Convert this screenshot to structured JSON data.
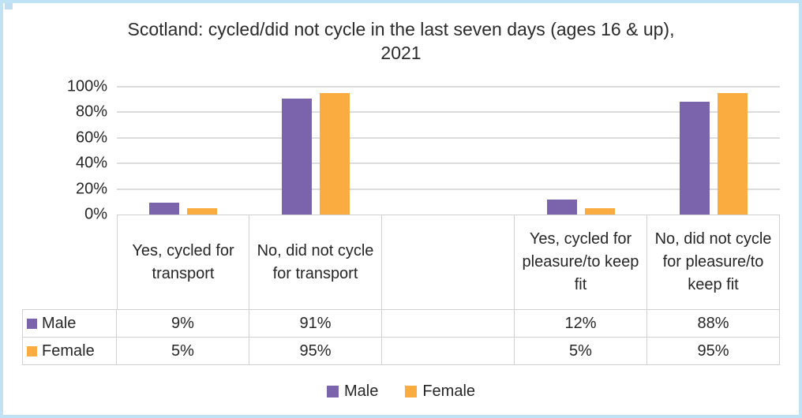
{
  "frame": {
    "border_color": "#bfe3f5"
  },
  "chart_data": {
    "type": "bar",
    "title": "Scotland: cycled/did not cycle in the last seven days (ages 16 & up), 2021",
    "categories": [
      "Yes, cycled for transport",
      "No, did not cycle for transport",
      "",
      "Yes, cycled for pleasure/to keep fit",
      "No, did not cycle for pleasure/to keep fit"
    ],
    "series": [
      {
        "name": "Male",
        "color": "#7c64ac",
        "values": [
          9,
          91,
          null,
          12,
          88
        ]
      },
      {
        "name": "Female",
        "color": "#faac41",
        "values": [
          5,
          95,
          null,
          5,
          95
        ]
      }
    ],
    "ylabel": "",
    "xlabel": "",
    "ylim": [
      0,
      100
    ],
    "ytick_labels": [
      "0%",
      "20%",
      "40%",
      "60%",
      "80%",
      "100%"
    ],
    "grid": true,
    "gridline_color": "#dcdcdc",
    "legend_position": "bottom",
    "data_table_shown": true
  },
  "data_table": {
    "row_headers": [
      "Male",
      "Female"
    ],
    "rows": [
      [
        "9%",
        "91%",
        "",
        "12%",
        "88%"
      ],
      [
        "5%",
        "95%",
        "",
        "5%",
        "95%"
      ]
    ]
  },
  "legend": {
    "items": [
      {
        "label": "Male",
        "color": "#7c64ac"
      },
      {
        "label": "Female",
        "color": "#faac41"
      }
    ]
  }
}
